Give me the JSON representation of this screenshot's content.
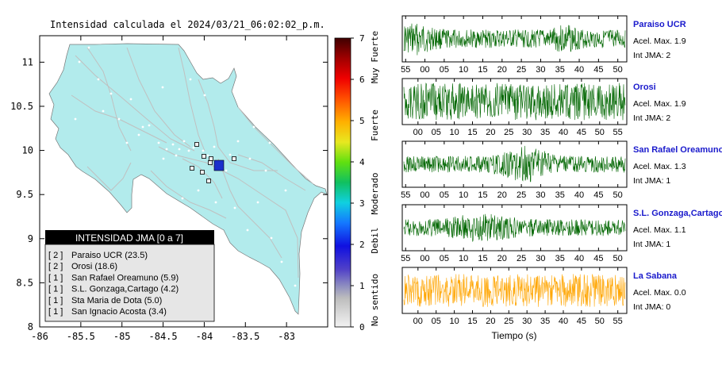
{
  "map": {
    "title": "Intensidad calculada el 2024/03/21_06:02:02_p.m.",
    "x_ticks": [
      "-86",
      "-85.5",
      "-85",
      "-84.5",
      "-84",
      "-83.5",
      "-83"
    ],
    "y_ticks": [
      "11",
      "10.5",
      "10",
      "9.5",
      "9",
      "8.5",
      "8"
    ],
    "xlim": [
      -86,
      -82.5
    ],
    "ylim": [
      8,
      11.3
    ],
    "land_color": "#b2ebec",
    "road_color": "#c0c0c0",
    "epicenter_color": "#1a2fcc"
  },
  "legend": {
    "title": "INTENSIDAD JMA [0 a 7]",
    "items": [
      {
        "level": "[ 2 ]",
        "name": "Paraiso UCR (23.5)"
      },
      {
        "level": "[ 2 ]",
        "name": "Orosi (18.6)"
      },
      {
        "level": "[ 1 ]",
        "name": "San Rafael Oreamuno (5.9)"
      },
      {
        "level": "[ 1 ]",
        "name": "S.L. Gonzaga,Cartago (4.2)"
      },
      {
        "level": "[ 1 ]",
        "name": "Sta Maria de Dota (5.0)"
      },
      {
        "level": "[ 1 ]",
        "name": "San Ignacio Acosta (3.4)"
      }
    ]
  },
  "colorbar": {
    "ticks": [
      "7",
      "6",
      "5",
      "4",
      "3",
      "2",
      "1",
      "0"
    ],
    "labels": [
      "Muy Fuerte",
      "Fuerte",
      "Moderado",
      "Debil",
      "No sentido"
    ]
  },
  "chart_data": {
    "type": "line",
    "xlabel": "Tiempo (s)",
    "waveforms": [
      {
        "name": "Paraiso UCR",
        "accel": "Acel. Max. 1.9",
        "intensity": "Int JMA: 2",
        "color": "#006600",
        "ticks": [
          "55",
          "00",
          "05",
          "10",
          "15",
          "20",
          "25",
          "30",
          "35",
          "40",
          "45",
          "50"
        ]
      },
      {
        "name": "Orosi",
        "accel": "Acel. Max. 1.9",
        "intensity": "Int JMA: 2",
        "color": "#006600",
        "ticks": [
          "00",
          "05",
          "10",
          "15",
          "20",
          "25",
          "30",
          "35",
          "40",
          "45",
          "50",
          "55"
        ]
      },
      {
        "name": "San Rafael Oreamuno",
        "accel": "Acel. Max. 1.3",
        "intensity": "Int JMA: 1",
        "color": "#006600",
        "ticks": [
          "55",
          "00",
          "05",
          "10",
          "15",
          "20",
          "25",
          "30",
          "35",
          "40",
          "45",
          "50"
        ]
      },
      {
        "name": "S.L. Gonzaga,Cartago",
        "accel": "Acel. Max. 1.1",
        "intensity": "Int JMA: 1",
        "color": "#006600",
        "ticks": [
          "55",
          "00",
          "05",
          "10",
          "15",
          "20",
          "25",
          "30",
          "35",
          "40",
          "45",
          "50"
        ]
      },
      {
        "name": "La Sabana",
        "accel": "Acel. Max. 0.0",
        "intensity": "Int JMA: 0",
        "color": "#ffa500",
        "ticks": [
          "00",
          "05",
          "10",
          "15",
          "20",
          "25",
          "30",
          "35",
          "40",
          "45",
          "50",
          "55"
        ]
      }
    ]
  }
}
